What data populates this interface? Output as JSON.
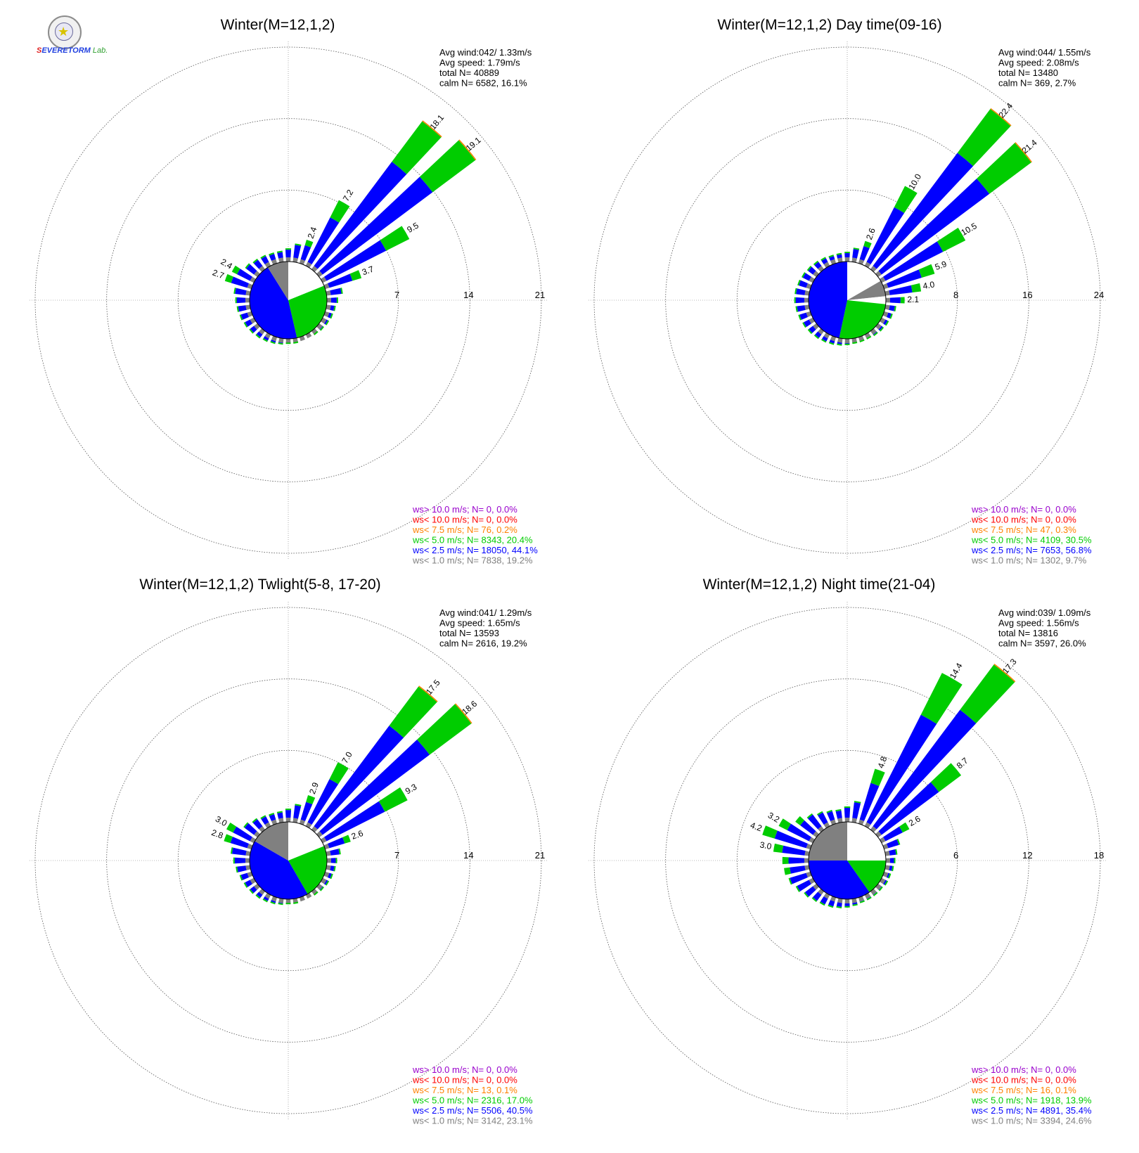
{
  "logo": {
    "text_a": "S",
    "text_b": "EVERE",
    "text_c": "TORM",
    "text_d": "Lab."
  },
  "colors": {
    "gray": "#808080",
    "blue": "#0000ff",
    "green": "#00cc00",
    "orange": "#ff8000",
    "red": "#ff0000",
    "purple": "#9900cc",
    "grid": "#000000",
    "text": "#000000"
  },
  "chart_data": [
    {
      "type": "wind-rose",
      "title": "Winter(M=12,1,2)",
      "stats": [
        "Avg wind:042/ 1.33m/s",
        "Avg speed: 1.79m/s",
        "total N=      40889",
        "calm N=   6582,  16.1%"
      ],
      "ring_ticks": [
        "7",
        "14",
        "21"
      ],
      "rmax": 21,
      "calm_sectors": [
        {
          "from": 0,
          "to": 68,
          "color": "white"
        },
        {
          "from": 68,
          "to": 167,
          "color": "green"
        },
        {
          "from": 167,
          "to": 328,
          "color": "blue"
        },
        {
          "from": 328,
          "to": 360,
          "color": "gray"
        }
      ],
      "petals": [
        {
          "dir": 0,
          "total": 1.3
        },
        {
          "dir": 10,
          "total": 1.8
        },
        {
          "dir": 20,
          "total": 2.4,
          "label": "2.4"
        },
        {
          "dir": 30,
          "total": 7.2,
          "label": "7.2"
        },
        {
          "dir": 40,
          "total": 18.1,
          "label": "18.1"
        },
        {
          "dir": 50,
          "total": 19.1,
          "label": "19.1"
        },
        {
          "dir": 60,
          "total": 9.5,
          "label": "9.5"
        },
        {
          "dir": 70,
          "total": 3.7,
          "label": "3.7"
        },
        {
          "dir": 80,
          "total": 1.6
        },
        {
          "dir": 90,
          "total": 1.1
        },
        {
          "dir": 100,
          "total": 0.9
        },
        {
          "dir": 110,
          "total": 0.8
        },
        {
          "dir": 120,
          "total": 0.7
        },
        {
          "dir": 130,
          "total": 0.6
        },
        {
          "dir": 140,
          "total": 0.5
        },
        {
          "dir": 150,
          "total": 0.4
        },
        {
          "dir": 160,
          "total": 0.4
        },
        {
          "dir": 170,
          "total": 0.5
        },
        {
          "dir": 180,
          "total": 0.5
        },
        {
          "dir": 190,
          "total": 0.6
        },
        {
          "dir": 200,
          "total": 0.7
        },
        {
          "dir": 210,
          "total": 0.8
        },
        {
          "dir": 220,
          "total": 0.9
        },
        {
          "dir": 230,
          "total": 1.0
        },
        {
          "dir": 240,
          "total": 1.1
        },
        {
          "dir": 250,
          "total": 1.2
        },
        {
          "dir": 260,
          "total": 1.3
        },
        {
          "dir": 270,
          "total": 1.4
        },
        {
          "dir": 280,
          "total": 1.6
        },
        {
          "dir": 290,
          "total": 2.7,
          "label": "2.7"
        },
        {
          "dir": 300,
          "total": 2.4,
          "label": "2.4"
        },
        {
          "dir": 310,
          "total": 1.5
        },
        {
          "dir": 320,
          "total": 1.3
        },
        {
          "dir": 330,
          "total": 1.2
        },
        {
          "dir": 340,
          "total": 1.1
        },
        {
          "dir": 350,
          "total": 1.1
        }
      ],
      "legend": [
        {
          "text": "ws> 10.0 m/s; N=      0,  0.0%",
          "color": "#9900cc"
        },
        {
          "text": "ws< 10.0 m/s; N=      0,  0.0%",
          "color": "#ff0000"
        },
        {
          "text": "ws<  7.5 m/s; N=     76,  0.2%",
          "color": "#ff8000"
        },
        {
          "text": "ws<  5.0 m/s; N=  8343, 20.4%",
          "color": "#00cc00"
        },
        {
          "text": "ws<  2.5 m/s; N= 18050, 44.1%",
          "color": "#0000ff"
        },
        {
          "text": "ws<  1.0 m/s; N=  7838, 19.2%",
          "color": "#808080"
        }
      ]
    },
    {
      "type": "wind-rose",
      "title": "Winter(M=12,1,2) Day time(09-16)",
      "stats": [
        "Avg wind:044/ 1.55m/s",
        "Avg speed: 2.08m/s",
        "total N=      13480",
        "calm N=    369,   2.7%"
      ],
      "ring_ticks": [
        "8",
        "16",
        "24"
      ],
      "rmax": 24,
      "calm_sectors": [
        {
          "from": 0,
          "to": 60,
          "color": "white"
        },
        {
          "from": 60,
          "to": 84,
          "color": "gray"
        },
        {
          "from": 84,
          "to": 96,
          "color": "white"
        },
        {
          "from": 96,
          "to": 192,
          "color": "green"
        },
        {
          "from": 192,
          "to": 360,
          "color": "blue"
        }
      ],
      "petals": [
        {
          "dir": 0,
          "total": 1.1
        },
        {
          "dir": 10,
          "total": 1.6
        },
        {
          "dir": 20,
          "total": 2.6,
          "label": "2.6"
        },
        {
          "dir": 30,
          "total": 10.0,
          "label": "10.0"
        },
        {
          "dir": 40,
          "total": 22.4,
          "label": "22.4"
        },
        {
          "dir": 50,
          "total": 21.4,
          "label": "21.4"
        },
        {
          "dir": 60,
          "total": 10.5,
          "label": "10.5"
        },
        {
          "dir": 70,
          "total": 5.9,
          "label": "5.9"
        },
        {
          "dir": 80,
          "total": 4.0,
          "label": "4.0"
        },
        {
          "dir": 90,
          "total": 2.1,
          "label": "2.1"
        },
        {
          "dir": 100,
          "total": 1.2
        },
        {
          "dir": 110,
          "total": 1.0
        },
        {
          "dir": 120,
          "total": 0.9
        },
        {
          "dir": 130,
          "total": 0.8
        },
        {
          "dir": 140,
          "total": 0.7
        },
        {
          "dir": 150,
          "total": 0.6
        },
        {
          "dir": 160,
          "total": 0.6
        },
        {
          "dir": 170,
          "total": 0.6
        },
        {
          "dir": 180,
          "total": 0.7
        },
        {
          "dir": 190,
          "total": 0.8
        },
        {
          "dir": 200,
          "total": 0.9
        },
        {
          "dir": 210,
          "total": 1.0
        },
        {
          "dir": 220,
          "total": 1.1
        },
        {
          "dir": 230,
          "total": 1.2
        },
        {
          "dir": 240,
          "total": 1.3
        },
        {
          "dir": 250,
          "total": 1.4
        },
        {
          "dir": 260,
          "total": 1.5
        },
        {
          "dir": 270,
          "total": 1.6
        },
        {
          "dir": 280,
          "total": 1.6
        },
        {
          "dir": 290,
          "total": 1.5
        },
        {
          "dir": 300,
          "total": 1.4
        },
        {
          "dir": 310,
          "total": 1.3
        },
        {
          "dir": 320,
          "total": 1.2
        },
        {
          "dir": 330,
          "total": 1.1
        },
        {
          "dir": 340,
          "total": 1.0
        },
        {
          "dir": 350,
          "total": 1.0
        }
      ],
      "legend": [
        {
          "text": "ws> 10.0 m/s; N=      0,  0.0%",
          "color": "#9900cc"
        },
        {
          "text": "ws< 10.0 m/s; N=      0,  0.0%",
          "color": "#ff0000"
        },
        {
          "text": "ws<  7.5 m/s; N=     47,  0.3%",
          "color": "#ff8000"
        },
        {
          "text": "ws<  5.0 m/s; N=  4109, 30.5%",
          "color": "#00cc00"
        },
        {
          "text": "ws<  2.5 m/s; N=  7653, 56.8%",
          "color": "#0000ff"
        },
        {
          "text": "ws<  1.0 m/s; N=  1302,  9.7%",
          "color": "#808080"
        }
      ]
    },
    {
      "type": "wind-rose",
      "title": "Winter(M=12,1,2) Twlight(5-8, 17-20)",
      "stats": [
        "Avg wind:041/ 1.29m/s",
        "Avg speed: 1.65m/s",
        "total N=      13593",
        "calm N=   2616,  19.2%"
      ],
      "ring_ticks": [
        "7",
        "14",
        "21"
      ],
      "rmax": 21,
      "calm_sectors": [
        {
          "from": 0,
          "to": 68,
          "color": "white"
        },
        {
          "from": 68,
          "to": 150,
          "color": "green"
        },
        {
          "from": 150,
          "to": 300,
          "color": "blue"
        },
        {
          "from": 300,
          "to": 360,
          "color": "gray"
        }
      ],
      "petals": [
        {
          "dir": 0,
          "total": 1.3
        },
        {
          "dir": 10,
          "total": 1.8
        },
        {
          "dir": 20,
          "total": 2.9,
          "label": "2.9"
        },
        {
          "dir": 30,
          "total": 7.0,
          "label": "7.0"
        },
        {
          "dir": 40,
          "total": 17.5,
          "label": "17.5"
        },
        {
          "dir": 50,
          "total": 18.6,
          "label": "18.6"
        },
        {
          "dir": 60,
          "total": 9.3,
          "label": "9.3"
        },
        {
          "dir": 70,
          "total": 2.6,
          "label": "2.6"
        },
        {
          "dir": 80,
          "total": 1.4
        },
        {
          "dir": 90,
          "total": 1.0
        },
        {
          "dir": 100,
          "total": 0.9
        },
        {
          "dir": 110,
          "total": 0.8
        },
        {
          "dir": 120,
          "total": 0.7
        },
        {
          "dir": 130,
          "total": 0.6
        },
        {
          "dir": 140,
          "total": 0.5
        },
        {
          "dir": 150,
          "total": 0.4
        },
        {
          "dir": 160,
          "total": 0.4
        },
        {
          "dir": 170,
          "total": 0.5
        },
        {
          "dir": 180,
          "total": 0.5
        },
        {
          "dir": 190,
          "total": 0.6
        },
        {
          "dir": 200,
          "total": 0.7
        },
        {
          "dir": 210,
          "total": 0.8
        },
        {
          "dir": 220,
          "total": 0.9
        },
        {
          "dir": 230,
          "total": 1.0
        },
        {
          "dir": 240,
          "total": 1.1
        },
        {
          "dir": 250,
          "total": 1.2
        },
        {
          "dir": 260,
          "total": 1.4
        },
        {
          "dir": 270,
          "total": 1.6
        },
        {
          "dir": 280,
          "total": 1.9
        },
        {
          "dir": 290,
          "total": 2.8,
          "label": "2.8"
        },
        {
          "dir": 300,
          "total": 3.0,
          "label": "3.0"
        },
        {
          "dir": 310,
          "total": 1.7
        },
        {
          "dir": 320,
          "total": 1.4
        },
        {
          "dir": 330,
          "total": 1.2
        },
        {
          "dir": 340,
          "total": 1.1
        },
        {
          "dir": 350,
          "total": 1.1
        }
      ],
      "legend": [
        {
          "text": "ws> 10.0 m/s; N=      0,  0.0%",
          "color": "#9900cc"
        },
        {
          "text": "ws< 10.0 m/s; N=      0,  0.0%",
          "color": "#ff0000"
        },
        {
          "text": "ws<  7.5 m/s; N=     13,  0.1%",
          "color": "#ff8000"
        },
        {
          "text": "ws<  5.0 m/s; N=  2316, 17.0%",
          "color": "#00cc00"
        },
        {
          "text": "ws<  2.5 m/s; N=  5506, 40.5%",
          "color": "#0000ff"
        },
        {
          "text": "ws<  1.0 m/s; N=  3142, 23.1%",
          "color": "#808080"
        }
      ]
    },
    {
      "type": "wind-rose",
      "title": "Winter(M=12,1,2) Night time(21-04)",
      "stats": [
        "Avg wind:039/ 1.09m/s",
        "Avg speed: 1.56m/s",
        "total N=      13816",
        "calm N=   3597,  26.0%"
      ],
      "ring_ticks": [
        "6",
        "12",
        "18"
      ],
      "rmax": 18,
      "calm_sectors": [
        {
          "from": 0,
          "to": 90,
          "color": "white"
        },
        {
          "from": 90,
          "to": 145,
          "color": "green"
        },
        {
          "from": 145,
          "to": 270,
          "color": "blue"
        },
        {
          "from": 270,
          "to": 360,
          "color": "gray"
        }
      ],
      "petals": [
        {
          "dir": 0,
          "total": 1.3
        },
        {
          "dir": 10,
          "total": 1.8
        },
        {
          "dir": 20,
          "total": 4.8,
          "label": "4.8"
        },
        {
          "dir": 30,
          "total": 14.4,
          "label": "14.4"
        },
        {
          "dir": 40,
          "total": 17.3,
          "label": "17.3"
        },
        {
          "dir": 50,
          "total": 8.7,
          "label": "8.7"
        },
        {
          "dir": 60,
          "total": 2.6,
          "label": "2.6"
        },
        {
          "dir": 70,
          "total": 1.4
        },
        {
          "dir": 80,
          "total": 1.0
        },
        {
          "dir": 90,
          "total": 0.8
        },
        {
          "dir": 100,
          "total": 0.7
        },
        {
          "dir": 110,
          "total": 0.6
        },
        {
          "dir": 120,
          "total": 0.6
        },
        {
          "dir": 130,
          "total": 0.5
        },
        {
          "dir": 140,
          "total": 0.5
        },
        {
          "dir": 150,
          "total": 0.5
        },
        {
          "dir": 160,
          "total": 0.5
        },
        {
          "dir": 170,
          "total": 0.6
        },
        {
          "dir": 180,
          "total": 0.7
        },
        {
          "dir": 190,
          "total": 0.8
        },
        {
          "dir": 200,
          "total": 0.9
        },
        {
          "dir": 210,
          "total": 1.0
        },
        {
          "dir": 220,
          "total": 1.1
        },
        {
          "dir": 230,
          "total": 1.3
        },
        {
          "dir": 240,
          "total": 1.6
        },
        {
          "dir": 250,
          "total": 1.9
        },
        {
          "dir": 260,
          "total": 2.1
        },
        {
          "dir": 270,
          "total": 2.2
        },
        {
          "dir": 280,
          "total": 3.0,
          "label": "3.0"
        },
        {
          "dir": 290,
          "total": 4.2,
          "label": "4.2"
        },
        {
          "dir": 300,
          "total": 3.2,
          "label": "3.2"
        },
        {
          "dir": 310,
          "total": 2.2
        },
        {
          "dir": 320,
          "total": 1.7
        },
        {
          "dir": 330,
          "total": 1.4
        },
        {
          "dir": 340,
          "total": 1.2
        },
        {
          "dir": 350,
          "total": 1.1
        }
      ],
      "legend": [
        {
          "text": "ws> 10.0 m/s; N=      0,  0.0%",
          "color": "#9900cc"
        },
        {
          "text": "ws< 10.0 m/s; N=      0,  0.0%",
          "color": "#ff0000"
        },
        {
          "text": "ws<  7.5 m/s; N=     16,  0.1%",
          "color": "#ff8000"
        },
        {
          "text": "ws<  5.0 m/s; N=  1918, 13.9%",
          "color": "#00cc00"
        },
        {
          "text": "ws<  2.5 m/s; N=  4891, 35.4%",
          "color": "#0000ff"
        },
        {
          "text": "ws<  1.0 m/s; N=  3394, 24.6%",
          "color": "#808080"
        }
      ]
    }
  ]
}
